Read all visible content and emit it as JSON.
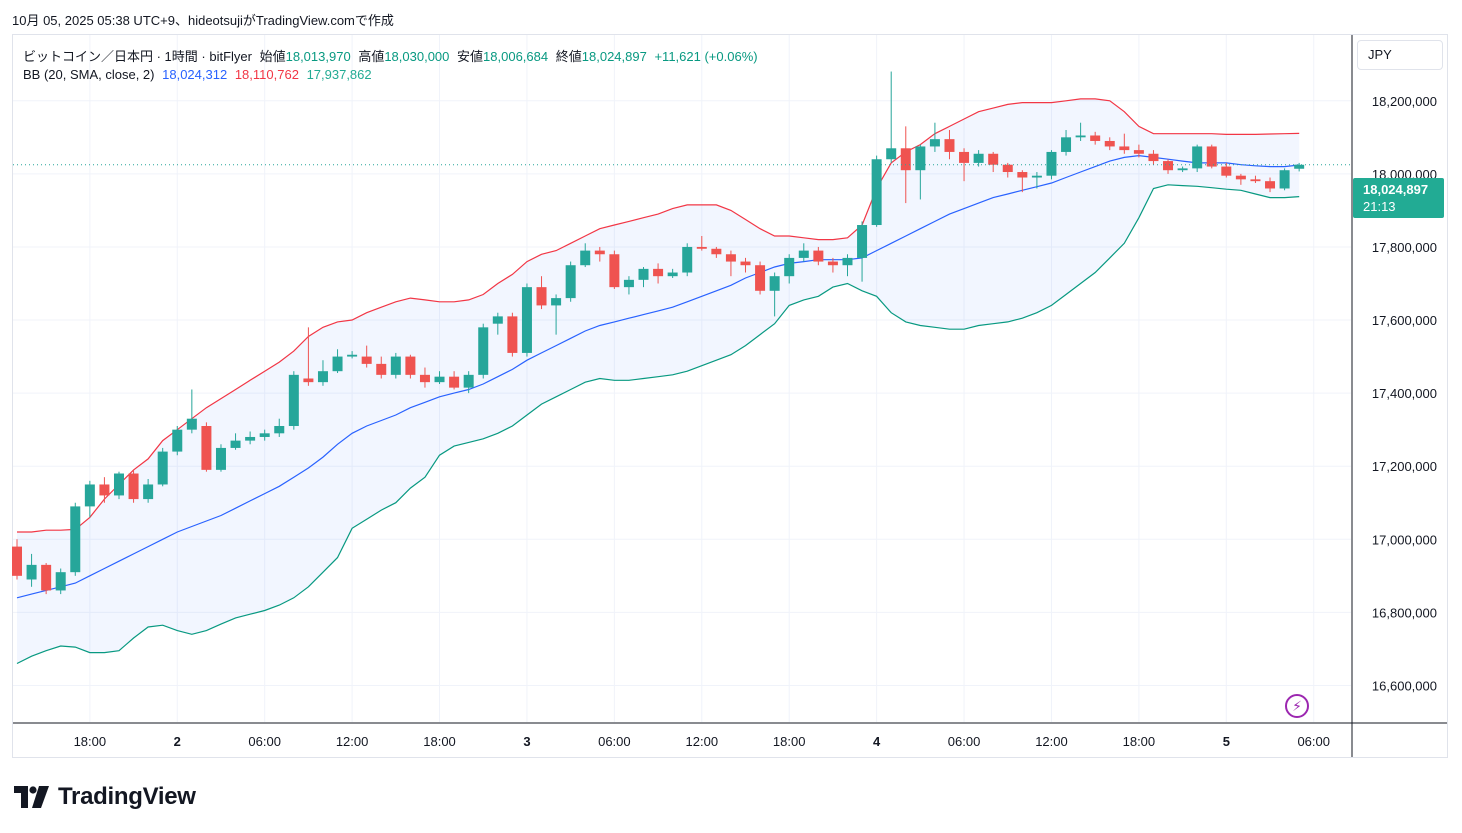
{
  "caption": "10月 05, 2025 05:38 UTC+9、hideotsujiがTradingView.comで作成",
  "legend": {
    "symbol": "ビットコイン／日本円 · 1時間 · bitFlyer",
    "open_label": "始値",
    "open": "18,013,970",
    "high_label": "高値",
    "high": "18,030,000",
    "low_label": "安値",
    "low": "18,006,684",
    "close_label": "終値",
    "close": "18,024,897",
    "change": "+11,621 (+0.06%)",
    "bb_label": "BB (20, SMA, close, 2)",
    "bb_basis": "18,024,312",
    "bb_upper": "18,110,762",
    "bb_lower": "17,937,862"
  },
  "currency": "JPY",
  "last_price": {
    "price": "18,024,897",
    "countdown": "21:13"
  },
  "lightning_icon": "lightning-icon",
  "brand": {
    "logo": "tradingview-logo-icon",
    "name": "TradingView"
  },
  "colors": {
    "up": "#26a69a",
    "down": "#ef5350",
    "basis": "#2962ff",
    "upper": "#f23645",
    "lower": "#089981",
    "band_fill": "#2962ff"
  },
  "chart_data": {
    "type": "candlestick",
    "title": "ビットコイン／日本円 · 1時間 · bitFlyer",
    "ylim": [
      16500000,
      18380000
    ],
    "y_ticks": [
      16600000,
      16800000,
      17000000,
      17200000,
      17400000,
      17600000,
      17800000,
      18000000,
      18200000
    ],
    "y_tick_labels": [
      "16,600,000",
      "16,800,000",
      "17,000,000",
      "17,200,000",
      "17,400,000",
      "17,600,000",
      "17,800,000",
      "18,000,000",
      "18,200,000"
    ],
    "x_ticks": [
      {
        "i": 5,
        "label": "18:00",
        "bold": false
      },
      {
        "i": 11,
        "label": "2",
        "bold": true
      },
      {
        "i": 17,
        "label": "06:00",
        "bold": false
      },
      {
        "i": 23,
        "label": "12:00",
        "bold": false
      },
      {
        "i": 29,
        "label": "18:00",
        "bold": false
      },
      {
        "i": 35,
        "label": "3",
        "bold": true
      },
      {
        "i": 41,
        "label": "06:00",
        "bold": false
      },
      {
        "i": 47,
        "label": "12:00",
        "bold": false
      },
      {
        "i": 53,
        "label": "18:00",
        "bold": false
      },
      {
        "i": 59,
        "label": "4",
        "bold": true
      },
      {
        "i": 65,
        "label": "06:00",
        "bold": false
      },
      {
        "i": 71,
        "label": "12:00",
        "bold": false
      },
      {
        "i": 77,
        "label": "18:00",
        "bold": false
      },
      {
        "i": 83,
        "label": "5",
        "bold": true
      },
      {
        "i": 89,
        "label": "06:00",
        "bold": false
      }
    ],
    "series": [
      {
        "name": "BTC/JPY",
        "ohlc": [
          [
            16980000,
            16900000,
            17000000,
            16890000
          ],
          [
            16890000,
            16930000,
            16960000,
            16870000
          ],
          [
            16930000,
            16860000,
            16935000,
            16850000
          ],
          [
            16860000,
            16910000,
            16920000,
            16850000
          ],
          [
            16910000,
            17090000,
            17100000,
            16900000
          ],
          [
            17090000,
            17150000,
            17160000,
            17060000
          ],
          [
            17150000,
            17120000,
            17170000,
            17100000
          ],
          [
            17120000,
            17180000,
            17185000,
            17110000
          ],
          [
            17180000,
            17110000,
            17190000,
            17100000
          ],
          [
            17110000,
            17150000,
            17165000,
            17100000
          ],
          [
            17150000,
            17240000,
            17250000,
            17145000
          ],
          [
            17240000,
            17300000,
            17310000,
            17230000
          ],
          [
            17300000,
            17330000,
            17410000,
            17290000
          ],
          [
            17310000,
            17190000,
            17320000,
            17185000
          ],
          [
            17190000,
            17250000,
            17260000,
            17185000
          ],
          [
            17250000,
            17270000,
            17290000,
            17245000
          ],
          [
            17270000,
            17280000,
            17295000,
            17260000
          ],
          [
            17280000,
            17290000,
            17300000,
            17270000
          ],
          [
            17290000,
            17310000,
            17330000,
            17280000
          ],
          [
            17310000,
            17450000,
            17460000,
            17300000
          ],
          [
            17440000,
            17430000,
            17580000,
            17420000
          ],
          [
            17430000,
            17460000,
            17490000,
            17420000
          ],
          [
            17460000,
            17500000,
            17520000,
            17455000
          ],
          [
            17500000,
            17505000,
            17515000,
            17495000
          ],
          [
            17500000,
            17480000,
            17530000,
            17470000
          ],
          [
            17480000,
            17450000,
            17500000,
            17440000
          ],
          [
            17450000,
            17500000,
            17510000,
            17440000
          ],
          [
            17500000,
            17450000,
            17505000,
            17440000
          ],
          [
            17450000,
            17430000,
            17470000,
            17415000
          ],
          [
            17430000,
            17445000,
            17460000,
            17425000
          ],
          [
            17445000,
            17415000,
            17460000,
            17410000
          ],
          [
            17415000,
            17450000,
            17460000,
            17400000
          ],
          [
            17450000,
            17580000,
            17590000,
            17440000
          ],
          [
            17590000,
            17610000,
            17620000,
            17560000
          ],
          [
            17610000,
            17510000,
            17620000,
            17500000
          ],
          [
            17510000,
            17690000,
            17700000,
            17500000
          ],
          [
            17690000,
            17640000,
            17720000,
            17630000
          ],
          [
            17640000,
            17660000,
            17670000,
            17560000
          ],
          [
            17660000,
            17750000,
            17760000,
            17650000
          ],
          [
            17750000,
            17790000,
            17810000,
            17745000
          ],
          [
            17790000,
            17780000,
            17800000,
            17760000
          ],
          [
            17780000,
            17690000,
            17790000,
            17685000
          ],
          [
            17690000,
            17710000,
            17720000,
            17670000
          ],
          [
            17710000,
            17740000,
            17745000,
            17690000
          ],
          [
            17740000,
            17720000,
            17755000,
            17700000
          ],
          [
            17720000,
            17730000,
            17740000,
            17715000
          ],
          [
            17730000,
            17800000,
            17810000,
            17720000
          ],
          [
            17800000,
            17795000,
            17830000,
            17790000
          ],
          [
            17795000,
            17780000,
            17800000,
            17770000
          ],
          [
            17780000,
            17760000,
            17790000,
            17720000
          ],
          [
            17760000,
            17750000,
            17770000,
            17730000
          ],
          [
            17750000,
            17680000,
            17760000,
            17670000
          ],
          [
            17680000,
            17720000,
            17730000,
            17610000
          ],
          [
            17720000,
            17770000,
            17780000,
            17700000
          ],
          [
            17770000,
            17790000,
            17810000,
            17760000
          ],
          [
            17790000,
            17760000,
            17800000,
            17750000
          ],
          [
            17760000,
            17750000,
            17770000,
            17730000
          ],
          [
            17750000,
            17770000,
            17780000,
            17720000
          ],
          [
            17770000,
            17860000,
            17870000,
            17705000
          ],
          [
            17860000,
            18040000,
            18050000,
            17855000
          ],
          [
            18040000,
            18070000,
            18280000,
            18030000
          ],
          [
            18070000,
            18010000,
            18130000,
            17920000
          ],
          [
            18010000,
            18075000,
            18080000,
            17930000
          ],
          [
            18075000,
            18095000,
            18140000,
            18060000
          ],
          [
            18095000,
            18060000,
            18120000,
            18040000
          ],
          [
            18060000,
            18030000,
            18070000,
            17980000
          ],
          [
            18030000,
            18055000,
            18065000,
            18020000
          ],
          [
            18055000,
            18025000,
            18060000,
            18005000
          ],
          [
            18025000,
            18005000,
            18030000,
            17990000
          ],
          [
            18005000,
            17990000,
            18010000,
            17950000
          ],
          [
            17990000,
            17995000,
            18005000,
            17960000
          ],
          [
            17995000,
            18060000,
            18065000,
            17985000
          ],
          [
            18060000,
            18100000,
            18120000,
            18050000
          ],
          [
            18100000,
            18105000,
            18140000,
            18090000
          ],
          [
            18105000,
            18090000,
            18115000,
            18080000
          ],
          [
            18090000,
            18075000,
            18100000,
            18065000
          ],
          [
            18075000,
            18065000,
            18110000,
            18055000
          ],
          [
            18065000,
            18055000,
            18080000,
            18045000
          ],
          [
            18055000,
            18035000,
            18065000,
            18025000
          ],
          [
            18035000,
            18010000,
            18040000,
            18000000
          ],
          [
            18010000,
            18015000,
            18020000,
            18005000
          ],
          [
            18015000,
            18075000,
            18080000,
            18005000
          ],
          [
            18075000,
            18020000,
            18080000,
            18015000
          ],
          [
            18020000,
            17995000,
            18030000,
            17990000
          ],
          [
            17995000,
            17985000,
            18000000,
            17970000
          ],
          [
            17985000,
            17980000,
            17995000,
            17975000
          ],
          [
            17980000,
            17960000,
            17990000,
            17950000
          ],
          [
            17960000,
            18010000,
            18015000,
            17955000
          ],
          [
            18013970,
            18024897,
            18030000,
            18006684
          ]
        ]
      }
    ],
    "bb_upper": [
      17020000,
      17020000,
      17025000,
      17025000,
      17027000,
      17060000,
      17110000,
      17150000,
      17190000,
      17220000,
      17270000,
      17300000,
      17330000,
      17360000,
      17385000,
      17410000,
      17435000,
      17460000,
      17485000,
      17515000,
      17555000,
      17580000,
      17595000,
      17600000,
      17620000,
      17635000,
      17650000,
      17660000,
      17655000,
      17650000,
      17650000,
      17655000,
      17670000,
      17700000,
      17725000,
      17760000,
      17780000,
      17790000,
      17810000,
      17830000,
      17850000,
      17860000,
      17870000,
      17880000,
      17890000,
      17905000,
      17915000,
      17915000,
      17915000,
      17900000,
      17875000,
      17850000,
      17830000,
      17830000,
      17825000,
      17820000,
      17820000,
      17825000,
      17860000,
      17960000,
      18030000,
      18060000,
      18080000,
      18110000,
      18130000,
      18150000,
      18170000,
      18180000,
      18190000,
      18195000,
      18195000,
      18195000,
      18200000,
      18205000,
      18205000,
      18200000,
      18170000,
      18130000,
      18110000,
      18110000,
      18110000,
      18110000,
      18110000,
      18108000,
      18108000,
      18108000,
      18109000,
      18110000,
      18110762
    ],
    "bb_basis": [
      16840000,
      16850000,
      16860000,
      16870000,
      16880000,
      16900000,
      16920000,
      16940000,
      16960000,
      16980000,
      17000000,
      17020000,
      17035000,
      17050000,
      17065000,
      17085000,
      17105000,
      17125000,
      17145000,
      17170000,
      17195000,
      17225000,
      17260000,
      17290000,
      17310000,
      17325000,
      17340000,
      17360000,
      17375000,
      17390000,
      17400000,
      17410000,
      17425000,
      17445000,
      17465000,
      17490000,
      17510000,
      17530000,
      17550000,
      17570000,
      17585000,
      17595000,
      17605000,
      17615000,
      17625000,
      17635000,
      17650000,
      17665000,
      17680000,
      17695000,
      17715000,
      17730000,
      17745000,
      17755000,
      17760000,
      17765000,
      17765000,
      17765000,
      17770000,
      17790000,
      17810000,
      17830000,
      17850000,
      17870000,
      17890000,
      17905000,
      17920000,
      17935000,
      17945000,
      17955000,
      17965000,
      17975000,
      17990000,
      18005000,
      18020000,
      18035000,
      18045000,
      18050000,
      18045000,
      18040000,
      18035000,
      18030000,
      18030000,
      18030000,
      18025000,
      18022000,
      18020000,
      18020000,
      18024312
    ],
    "bb_lower": [
      16660000,
      16680000,
      16695000,
      16708000,
      16705000,
      16690000,
      16690000,
      16695000,
      16730000,
      16760000,
      16765000,
      16750000,
      16740000,
      16750000,
      16768000,
      16785000,
      16795000,
      16805000,
      16820000,
      16840000,
      16870000,
      16910000,
      16950000,
      17030000,
      17055000,
      17080000,
      17100000,
      17140000,
      17170000,
      17230000,
      17255000,
      17265000,
      17275000,
      17290000,
      17310000,
      17340000,
      17370000,
      17390000,
      17410000,
      17430000,
      17440000,
      17435000,
      17435000,
      17440000,
      17445000,
      17450000,
      17460000,
      17475000,
      17490000,
      17505000,
      17530000,
      17560000,
      17590000,
      17640000,
      17655000,
      17665000,
      17690000,
      17700000,
      17680000,
      17665000,
      17620000,
      17595000,
      17585000,
      17580000,
      17575000,
      17575000,
      17585000,
      17590000,
      17595000,
      17605000,
      17620000,
      17640000,
      17670000,
      17700000,
      17730000,
      17770000,
      17810000,
      17880000,
      17960000,
      17970000,
      17968000,
      17966000,
      17962000,
      17958000,
      17955000,
      17945000,
      17935000,
      17935000,
      17937862
    ]
  }
}
